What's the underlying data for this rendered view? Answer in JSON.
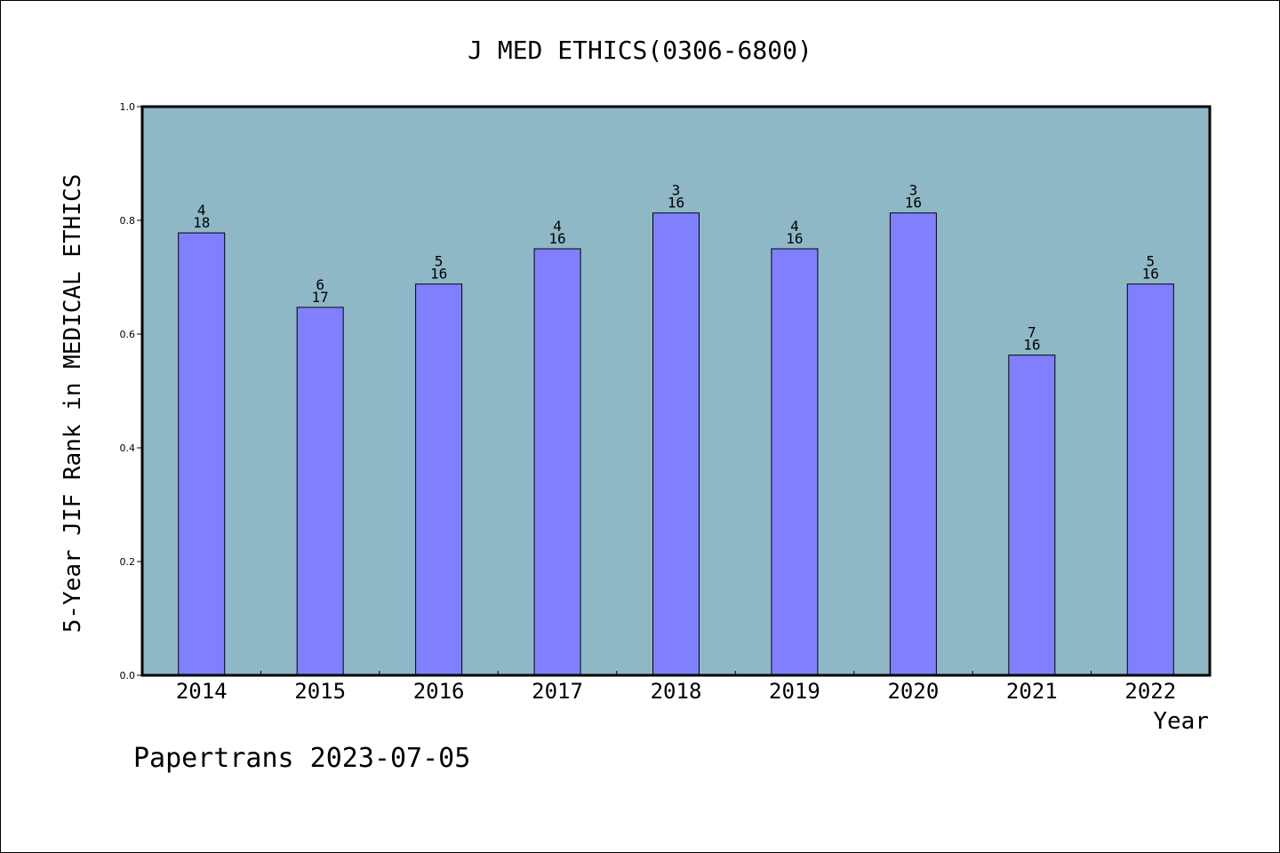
{
  "chart_data": {
    "type": "bar",
    "title": "J MED ETHICS(0306-6800)",
    "xlabel": "Year",
    "ylabel": "5-Year JIF Rank in MEDICAL ETHICS",
    "categories": [
      "2014",
      "2015",
      "2016",
      "2017",
      "2018",
      "2019",
      "2020",
      "2021",
      "2022"
    ],
    "values": [
      0.778,
      0.647,
      0.688,
      0.75,
      0.813,
      0.75,
      0.813,
      0.563,
      0.688
    ],
    "rank_labels": [
      {
        "rank": "4",
        "total": "18"
      },
      {
        "rank": "6",
        "total": "17"
      },
      {
        "rank": "5",
        "total": "16"
      },
      {
        "rank": "4",
        "total": "16"
      },
      {
        "rank": "3",
        "total": "16"
      },
      {
        "rank": "4",
        "total": "16"
      },
      {
        "rank": "3",
        "total": "16"
      },
      {
        "rank": "7",
        "total": "16"
      },
      {
        "rank": "5",
        "total": "16"
      }
    ],
    "ylim": [
      0,
      1.0
    ],
    "yticks": [
      "0.0",
      "0.2",
      "0.4",
      "0.6",
      "0.8",
      "1.0"
    ],
    "grid": false,
    "colors": {
      "plot_background": "#8fb8c6",
      "bar_fill": "#8080ff",
      "bar_stroke": "#000000"
    }
  },
  "footer": "Papertrans 2023-07-05"
}
